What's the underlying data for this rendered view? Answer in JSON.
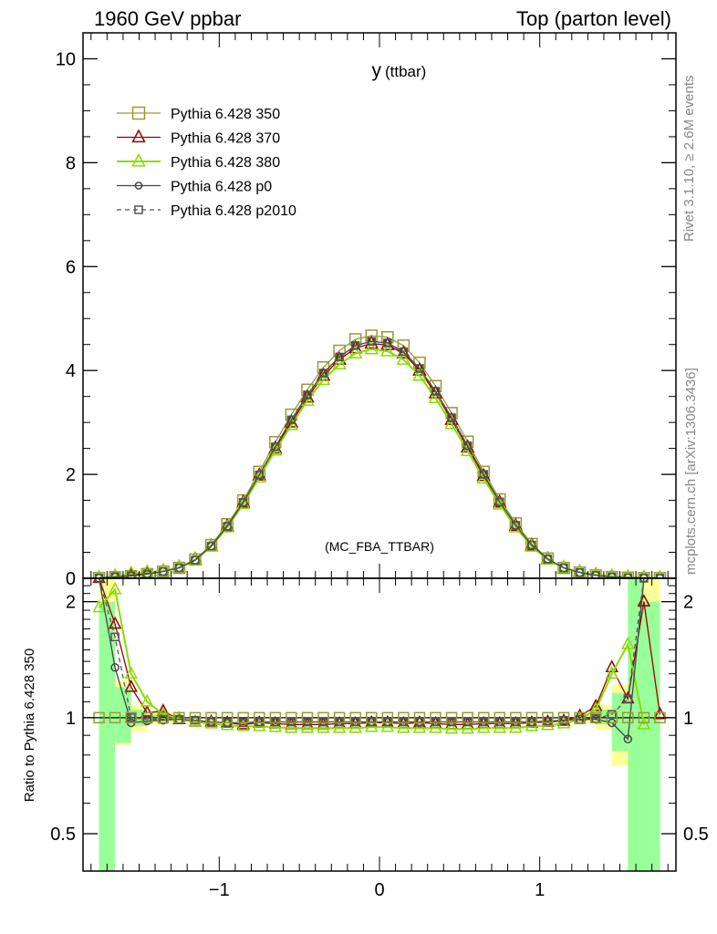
{
  "header": {
    "left": "1960 GeV ppbar",
    "right": "Top (parton level)"
  },
  "side_text": {
    "upper": "Rivet 3.1.10, ≥ 2.6M events",
    "lower": "mcplots.cern.ch [arXiv:1306.3436]"
  },
  "chart_data": {
    "type": "line",
    "title_main": "y",
    "title_sub": "(ttbar)",
    "watermark": "(MC_FBA_TTBAR)",
    "xlabel": "",
    "ylabel": "",
    "xlim": [
      -1.85,
      1.85
    ],
    "ylim": [
      0,
      10.5
    ],
    "x_ticks": [
      -1,
      0,
      1
    ],
    "x_tick_labels": [
      "−1",
      "0",
      "1"
    ],
    "y_ticks": [
      0,
      2,
      4,
      6,
      8,
      10
    ],
    "y_tick_labels": [
      "0",
      "2",
      "4",
      "6",
      "8",
      "10"
    ],
    "grid": false,
    "legend_position": "top-left",
    "x": [
      -1.75,
      -1.65,
      -1.55,
      -1.45,
      -1.35,
      -1.25,
      -1.15,
      -1.05,
      -0.95,
      -0.85,
      -0.75,
      -0.65,
      -0.55,
      -0.45,
      -0.35,
      -0.25,
      -0.15,
      -0.05,
      0.05,
      0.15,
      0.25,
      0.35,
      0.45,
      0.55,
      0.65,
      0.75,
      0.85,
      0.95,
      1.05,
      1.15,
      1.25,
      1.35,
      1.45,
      1.55,
      1.65,
      1.75
    ],
    "series": [
      {
        "name": "Pythia 6.428 350",
        "color": "#999933",
        "marker": "square",
        "dash": false,
        "values": [
          0.005,
          0.02,
          0.04,
          0.08,
          0.13,
          0.2,
          0.36,
          0.64,
          1.04,
          1.5,
          2.05,
          2.62,
          3.15,
          3.63,
          4.06,
          4.38,
          4.6,
          4.67,
          4.64,
          4.48,
          4.15,
          3.7,
          3.18,
          2.63,
          2.05,
          1.52,
          1.06,
          0.66,
          0.38,
          0.2,
          0.11,
          0.055,
          0.025,
          0.012,
          0.005,
          0.003
        ]
      },
      {
        "name": "Pythia 6.428 370",
        "color": "#990000",
        "marker": "triangle",
        "dash": false,
        "values": [
          0.005,
          0.03,
          0.06,
          0.1,
          0.14,
          0.21,
          0.36,
          0.62,
          1.0,
          1.46,
          1.98,
          2.5,
          3.0,
          3.48,
          3.9,
          4.21,
          4.43,
          4.52,
          4.49,
          4.33,
          4.0,
          3.56,
          3.05,
          2.52,
          1.97,
          1.46,
          1.01,
          0.63,
          0.37,
          0.2,
          0.12,
          0.065,
          0.035,
          0.02,
          0.01,
          0.006
        ]
      },
      {
        "name": "Pythia 6.428 380",
        "color": "#88dd00",
        "marker": "triangle",
        "dash": false,
        "values": [
          0.01,
          0.04,
          0.09,
          0.12,
          0.14,
          0.21,
          0.35,
          0.61,
          0.98,
          1.43,
          1.94,
          2.46,
          2.95,
          3.42,
          3.82,
          4.12,
          4.33,
          4.41,
          4.37,
          4.21,
          3.9,
          3.47,
          2.97,
          2.45,
          1.92,
          1.42,
          0.98,
          0.61,
          0.36,
          0.2,
          0.12,
          0.07,
          0.04,
          0.02,
          0.008,
          0.004
        ]
      },
      {
        "name": "Pythia 6.428 p0",
        "color": "#444444",
        "marker": "circle",
        "dash": false,
        "values": [
          0.005,
          0.025,
          0.045,
          0.08,
          0.13,
          0.2,
          0.35,
          0.62,
          1.0,
          1.46,
          1.99,
          2.53,
          3.05,
          3.53,
          3.95,
          4.26,
          4.48,
          4.56,
          4.53,
          4.36,
          4.04,
          3.6,
          3.09,
          2.55,
          2.0,
          1.47,
          1.02,
          0.64,
          0.37,
          0.2,
          0.11,
          0.055,
          0.025,
          0.012,
          0.005,
          0.003
        ]
      },
      {
        "name": "Pythia 6.428 p2010",
        "color": "#555555",
        "marker": "square",
        "dash": true,
        "values": [
          0.005,
          0.028,
          0.048,
          0.082,
          0.13,
          0.2,
          0.35,
          0.62,
          1.0,
          1.46,
          1.99,
          2.53,
          3.05,
          3.53,
          3.95,
          4.26,
          4.48,
          4.56,
          4.53,
          4.36,
          4.04,
          3.6,
          3.09,
          2.55,
          2.0,
          1.47,
          1.02,
          0.64,
          0.37,
          0.2,
          0.11,
          0.055,
          0.026,
          0.012,
          0.005,
          0.003
        ]
      }
    ],
    "ratio": {
      "ylabel": "Ratio to Pythia 6.428 350",
      "ylim": [
        0.4,
        2.3
      ],
      "log_scale": true,
      "y_ticks": [
        0.5,
        1,
        2
      ],
      "y_tick_labels": [
        "0.5",
        "1",
        "2"
      ],
      "reference_line": 1,
      "band_yellow": [
        [
          -1.7,
          0.68,
          2.3
        ],
        [
          -1.6,
          0.85,
          1.25
        ],
        [
          -1.5,
          0.92,
          1.08
        ],
        [
          -1.4,
          0.96,
          1.04
        ],
        [
          -1.3,
          0.97,
          1.03
        ],
        [
          1.3,
          0.97,
          1.03
        ],
        [
          1.4,
          0.93,
          1.08
        ],
        [
          1.5,
          0.75,
          1.22
        ],
        [
          1.6,
          0.4,
          2.3
        ],
        [
          1.7,
          0.4,
          2.3
        ]
      ],
      "band_green": [
        [
          -1.7,
          0.4,
          2.0
        ],
        [
          -1.6,
          0.86,
          1.2
        ],
        [
          -1.5,
          0.95,
          1.05
        ],
        [
          -1.4,
          0.98,
          1.02
        ],
        [
          1.4,
          0.96,
          1.05
        ],
        [
          1.5,
          0.82,
          1.16
        ],
        [
          1.6,
          0.4,
          2.3
        ],
        [
          1.7,
          0.4,
          2.0
        ]
      ],
      "band_width": 0.1,
      "series": [
        {
          "name": "Pythia 6.428 370",
          "color": "#990000",
          "marker": "triangle",
          "dash": false,
          "values": [
            2.5,
            1.75,
            1.2,
            1.03,
            1.04,
            0.99,
            0.975,
            0.975,
            0.97,
            0.96,
            0.97,
            0.965,
            0.96,
            0.96,
            0.96,
            0.965,
            0.965,
            0.97,
            0.97,
            0.965,
            0.97,
            0.965,
            0.96,
            0.96,
            0.965,
            0.965,
            0.965,
            0.97,
            0.975,
            0.98,
            1.01,
            1.07,
            1.35,
            1.12,
            2.0,
            1.02
          ]
        },
        {
          "name": "Pythia 6.428 380",
          "color": "#88dd00",
          "marker": "triangle",
          "dash": false,
          "values": [
            1.93,
            2.15,
            1.3,
            1.1,
            1.02,
            0.995,
            0.975,
            0.965,
            0.955,
            0.95,
            0.95,
            0.945,
            0.94,
            0.94,
            0.94,
            0.94,
            0.94,
            0.945,
            0.945,
            0.94,
            0.94,
            0.94,
            0.935,
            0.935,
            0.94,
            0.94,
            0.94,
            0.95,
            0.955,
            0.965,
            0.99,
            1.05,
            1.3,
            1.55,
            0.96,
            null
          ]
        },
        {
          "name": "Pythia 6.428 p0",
          "color": "#444444",
          "marker": "circle",
          "dash": false,
          "values": [
            2.5,
            1.35,
            0.97,
            0.98,
            0.985,
            0.99,
            0.985,
            0.975,
            0.97,
            0.97,
            0.975,
            0.975,
            0.975,
            0.975,
            0.975,
            0.975,
            0.975,
            0.975,
            0.975,
            0.975,
            0.975,
            0.975,
            0.975,
            0.975,
            0.975,
            0.975,
            0.975,
            0.975,
            0.98,
            0.985,
            0.99,
            0.99,
            0.97,
            0.88,
            2.3,
            null
          ]
        },
        {
          "name": "Pythia 6.428 p2010",
          "color": "#555555",
          "marker": "square",
          "dash": true,
          "values": [
            2.5,
            1.62,
            1.0,
            0.99,
            0.99,
            0.99,
            0.985,
            0.975,
            0.97,
            0.97,
            0.975,
            0.975,
            0.975,
            0.975,
            0.975,
            0.975,
            0.975,
            0.975,
            0.975,
            0.975,
            0.975,
            0.975,
            0.975,
            0.975,
            0.975,
            0.975,
            0.975,
            0.975,
            0.98,
            0.985,
            0.99,
            0.995,
            1.02,
            1.12,
            2.3,
            null
          ]
        }
      ]
    }
  }
}
